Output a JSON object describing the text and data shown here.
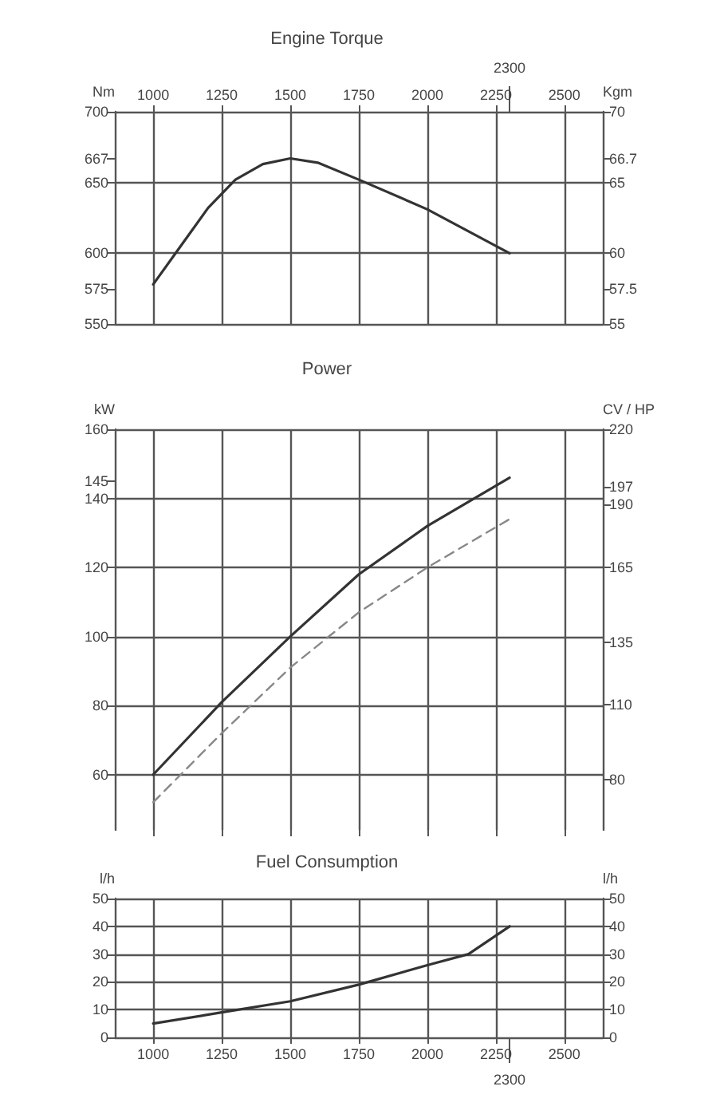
{
  "chart_data": [
    {
      "type": "line",
      "title": "Engine Torque",
      "ylabel": "Nm",
      "y2label": "Kgm",
      "x": [
        1000,
        1100,
        1200,
        1300,
        1400,
        1500,
        1600,
        1750,
        2000,
        2300
      ],
      "series": [
        {
          "color": "#333333",
          "values": [
            578,
            605,
            632,
            652,
            663,
            667,
            664,
            652,
            631,
            600
          ]
        }
      ],
      "xlim": [
        860,
        2640
      ],
      "xticks": [
        1000,
        1250,
        1500,
        1750,
        2000,
        2250,
        2500
      ],
      "annotations": [
        {
          "text": "2300",
          "x": 2300
        }
      ],
      "ylim": [
        550,
        700
      ],
      "yticks": [
        550,
        600,
        650,
        700,
        575,
        667
      ],
      "y2lim": [
        55,
        70
      ],
      "y2ticks": [
        55,
        60,
        65,
        70,
        57.5,
        66.7
      ],
      "grid": true
    },
    {
      "type": "line",
      "title": "Power",
      "ylabel": "kW",
      "y2label": "CV / HP",
      "x": [
        1000,
        1250,
        1500,
        1750,
        2000,
        2300
      ],
      "series": [
        {
          "color": "#333333",
          "values": [
            60,
            81,
            100,
            118,
            132,
            146
          ]
        },
        {
          "color": "#888888",
          "line_style": "dashed",
          "values": [
            52,
            72,
            91,
            107,
            120,
            134
          ]
        }
      ],
      "xlim": [
        860,
        2640
      ],
      "xticks": [
        1000,
        1250,
        1500,
        1750,
        2000,
        2250,
        2500
      ],
      "ylim": [
        44,
        160
      ],
      "yticks": [
        60,
        80,
        100,
        120,
        140,
        160,
        145
      ],
      "y2lim": [
        60,
        220
      ],
      "y2ticks": [
        80,
        110,
        135,
        165,
        190,
        220,
        197
      ],
      "grid": true,
      "tick_labels": "y"
    },
    {
      "type": "line",
      "title": "Fuel Consumption",
      "ylabel": "l/h",
      "y2label": "l/h",
      "x": [
        1000,
        1250,
        1500,
        1750,
        2000,
        2150,
        2300
      ],
      "series": [
        {
          "color": "#333333",
          "values": [
            5,
            9,
            13,
            19,
            26,
            30,
            40
          ]
        }
      ],
      "xlim": [
        860,
        2640
      ],
      "xticks": [
        1000,
        1250,
        1500,
        1750,
        2000,
        2250,
        2500
      ],
      "annotations": [
        {
          "text": "2300",
          "x": 2300
        }
      ],
      "ylim": [
        0,
        50
      ],
      "yticks": [
        0,
        10,
        20,
        30,
        40,
        50
      ],
      "y2lim": [
        0,
        50
      ],
      "y2ticks": [
        0,
        10,
        20,
        30,
        40,
        50
      ],
      "grid": true
    }
  ]
}
